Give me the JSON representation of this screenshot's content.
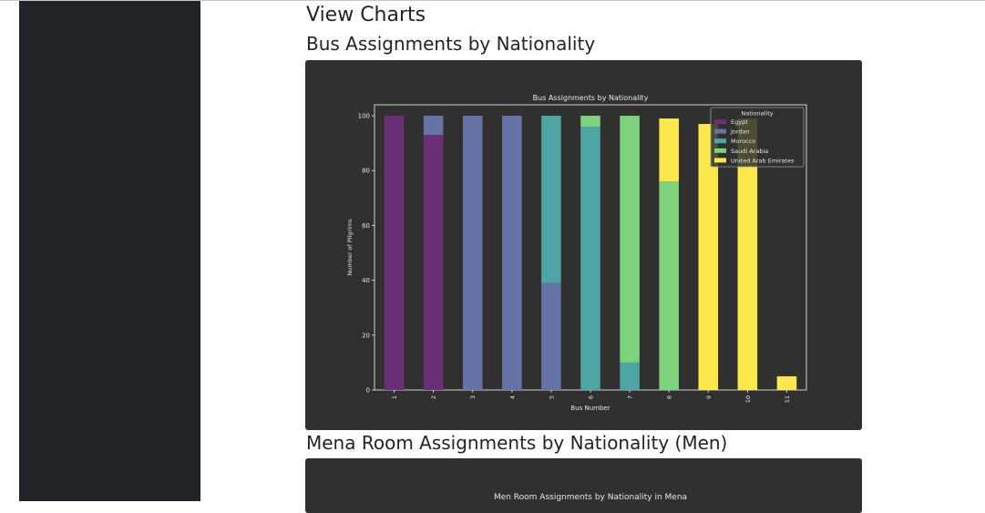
{
  "page": {
    "title": "View Charts"
  },
  "sections": [
    {
      "heading": "Bus Assignments by Nationality"
    },
    {
      "heading": "Mena Room Assignments by Nationality (Men)"
    }
  ],
  "colors": {
    "Egypt": "#6a2f75",
    "Jordan": "#6673a7",
    "Morocco": "#4da6a4",
    "Saudi Arabia": "#7ed27c",
    "United Arab Emirates": "#fde84c"
  },
  "chart_data": [
    {
      "type": "bar",
      "stacked": true,
      "title": "Bus Assignments by Nationality",
      "xlabel": "Bus Number",
      "ylabel": "Number of Pilgrims",
      "legend_title": "Nationality",
      "legend_position": "top-right",
      "categories": [
        "1",
        "2",
        "3",
        "4",
        "5",
        "6",
        "7",
        "8",
        "9",
        "10",
        "11"
      ],
      "ylim": [
        0,
        104
      ],
      "yticks": [
        0,
        20,
        40,
        60,
        80,
        100
      ],
      "series": [
        {
          "name": "Egypt",
          "values": [
            100,
            93,
            0,
            0,
            0,
            0,
            0,
            0,
            0,
            0,
            0
          ]
        },
        {
          "name": "Jordan",
          "values": [
            0,
            7,
            100,
            100,
            39,
            0,
            0,
            0,
            0,
            0,
            0
          ]
        },
        {
          "name": "Morocco",
          "values": [
            0,
            0,
            0,
            0,
            61,
            96,
            10,
            0,
            0,
            0,
            0
          ]
        },
        {
          "name": "Saudi Arabia",
          "values": [
            0,
            0,
            0,
            0,
            0,
            4,
            90,
            76,
            0,
            0,
            0
          ]
        },
        {
          "name": "United Arab Emirates",
          "values": [
            0,
            0,
            0,
            0,
            0,
            0,
            0,
            23,
            97,
            99,
            5
          ]
        }
      ]
    },
    {
      "type": "bar",
      "title": "Men Room Assignments by Nationality in Mena"
    }
  ]
}
